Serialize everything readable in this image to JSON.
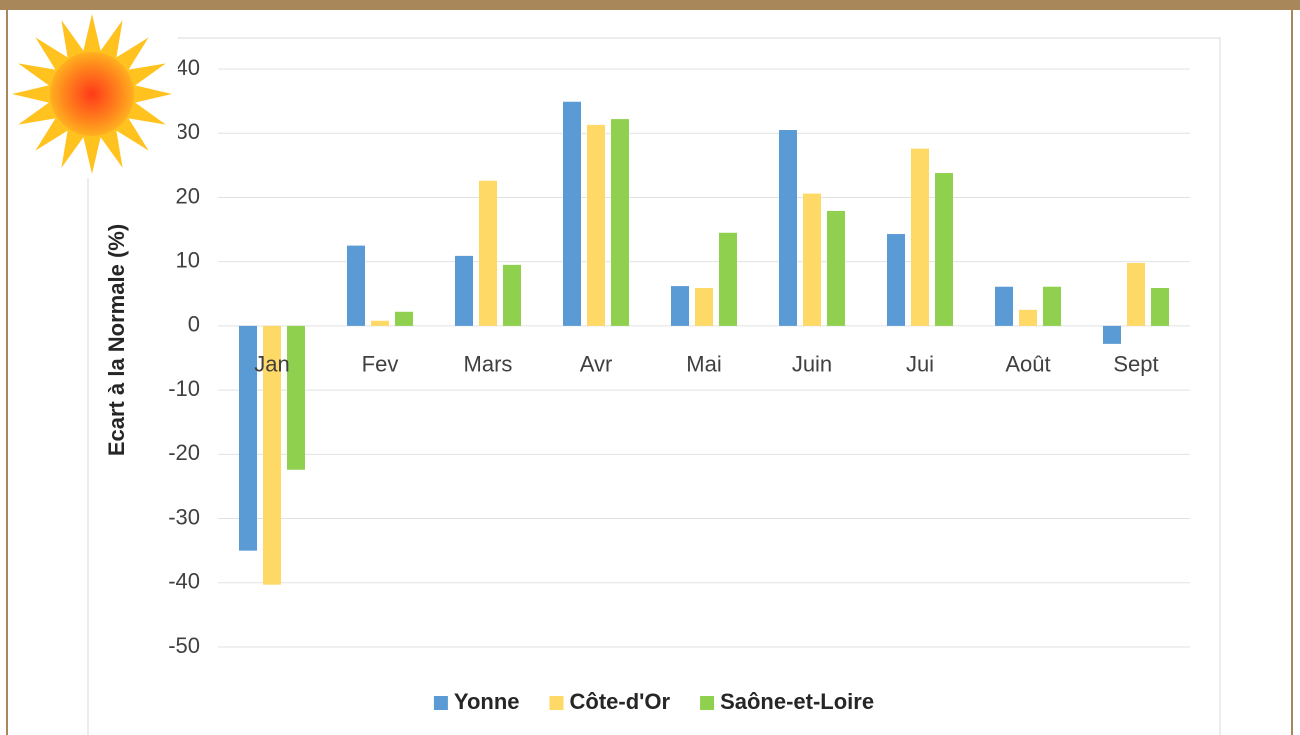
{
  "chart_data": {
    "type": "bar",
    "y_label": "Ecart à la Normale (%)",
    "categories": [
      "Jan",
      "Fev",
      "Mars",
      "Avr",
      "Mai",
      "Juin",
      "Jui",
      "Août",
      "Sept"
    ],
    "series": [
      {
        "name": "Yonne",
        "color": "#5b9bd5",
        "values": [
          -35,
          12.5,
          10.9,
          34.9,
          6.2,
          30.5,
          14.3,
          6.1,
          -2.8
        ]
      },
      {
        "name": "Côte-d'Or",
        "color": "#ffd966",
        "values": [
          -40.3,
          0.8,
          22.6,
          31.3,
          5.9,
          20.6,
          27.6,
          2.5,
          9.8
        ]
      },
      {
        "name": "Saône-et-Loire",
        "color": "#8fd14f",
        "values": [
          -22.4,
          2.2,
          9.5,
          32.2,
          14.5,
          17.9,
          23.8,
          6.1,
          5.9
        ]
      }
    ],
    "ylim": [
      -50,
      40
    ],
    "yticks": [
      40,
      30,
      20,
      10,
      0,
      -10,
      -20,
      -30,
      -40,
      -50
    ],
    "grid": true,
    "legend": "bottom"
  }
}
